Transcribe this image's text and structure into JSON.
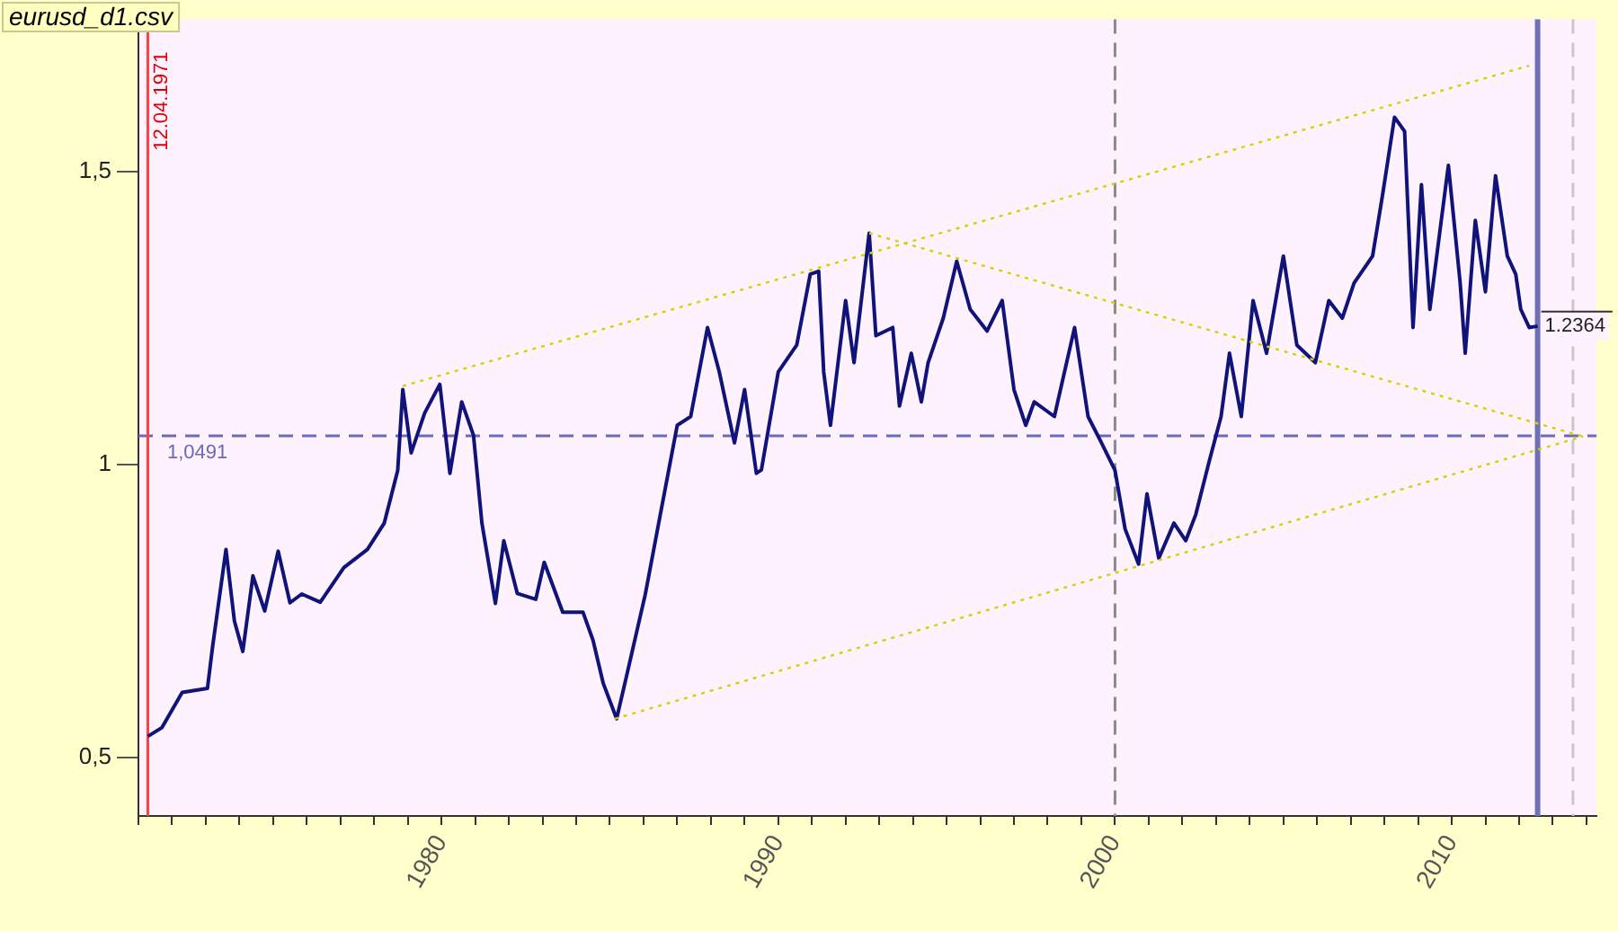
{
  "chart_data": {
    "type": "line",
    "title": "eurusd_d1.csv",
    "series": [
      {
        "color": "#10147a",
        "x": [
          1971.28,
          1971.7,
          1972.3,
          1973.05,
          1973.2,
          1973.6,
          1973.85,
          1974.1,
          1974.4,
          1974.75,
          1975.15,
          1975.5,
          1975.85,
          1976.4,
          1977.1,
          1977.8,
          1978.3,
          1978.7,
          1978.85,
          1979.1,
          1979.5,
          1979.95,
          1980.25,
          1980.6,
          1980.95,
          1981.2,
          1981.6,
          1981.85,
          1982.25,
          1982.8,
          1983.05,
          1983.6,
          1984.2,
          1984.5,
          1984.8,
          1985.2,
          1985.5,
          1986.05,
          1986.45,
          1987.0,
          1987.4,
          1987.9,
          1988.25,
          1988.7,
          1989.0,
          1989.35,
          1989.5,
          1990.0,
          1990.55,
          1990.95,
          1991.2,
          1991.35,
          1991.55,
          1992.0,
          1992.25,
          1992.7,
          1992.9,
          1993.4,
          1993.6,
          1993.95,
          1994.25,
          1994.45,
          1994.9,
          1995.3,
          1995.7,
          1996.2,
          1996.65,
          1997.0,
          1997.35,
          1997.6,
          1998.2,
          1998.8,
          1999.2,
          1999.6,
          2000.0,
          2000.3,
          2000.7,
          2000.95,
          2001.3,
          2001.75,
          2002.1,
          2002.4,
          2002.8,
          2003.15,
          2003.4,
          2003.75,
          2004.1,
          2004.5,
          2005.0,
          2005.4,
          2005.95,
          2006.35,
          2006.75,
          2007.1,
          2007.65,
          2007.95,
          2008.3,
          2008.6,
          2008.85,
          2009.1,
          2009.35,
          2009.9,
          2010.25,
          2010.4,
          2010.7,
          2011.0,
          2011.3,
          2011.65,
          2011.9,
          2012.05,
          2012.3,
          2012.55
        ],
        "values": [
          0.536,
          0.551,
          0.611,
          0.618,
          0.688,
          0.855,
          0.733,
          0.681,
          0.81,
          0.75,
          0.852,
          0.764,
          0.779,
          0.765,
          0.824,
          0.855,
          0.9,
          0.99,
          1.128,
          1.02,
          1.088,
          1.137,
          0.985,
          1.107,
          1.05,
          0.9,
          0.763,
          0.87,
          0.78,
          0.77,
          0.833,
          0.748,
          0.748,
          0.7,
          0.627,
          0.566,
          0.64,
          0.778,
          0.9,
          1.067,
          1.082,
          1.234,
          1.158,
          1.037,
          1.128,
          0.985,
          0.991,
          1.158,
          1.204,
          1.325,
          1.33,
          1.158,
          1.067,
          1.28,
          1.174,
          1.395,
          1.22,
          1.234,
          1.1,
          1.19,
          1.107,
          1.174,
          1.25,
          1.347,
          1.265,
          1.228,
          1.28,
          1.128,
          1.067,
          1.107,
          1.082,
          1.234,
          1.082,
          1.037,
          0.99,
          0.89,
          0.83,
          0.95,
          0.84,
          0.9,
          0.87,
          0.915,
          1.006,
          1.082,
          1.19,
          1.082,
          1.28,
          1.19,
          1.356,
          1.204,
          1.174,
          1.28,
          1.25,
          1.31,
          1.356,
          1.462,
          1.593,
          1.569,
          1.234,
          1.478,
          1.265,
          1.511,
          1.31,
          1.19,
          1.417,
          1.295,
          1.493,
          1.356,
          1.325,
          1.265,
          1.234,
          1.2364
        ]
      },
      {
        "type": "line",
        "line_style": "dotted",
        "color": "#d8d000",
        "x": [
          1978.85,
          2012.3
        ],
        "values": [
          1.134,
          1.681
        ]
      },
      {
        "type": "line",
        "line_style": "dotted",
        "color": "#d8d000",
        "x": [
          1985.15,
          2013.9
        ],
        "values": [
          0.566,
          1.048
        ]
      },
      {
        "type": "line",
        "line_style": "dotted",
        "color": "#d8d000",
        "x": [
          1992.7,
          2013.9
        ],
        "values": [
          1.395,
          1.048
        ]
      }
    ],
    "xlim": [
      1971,
      2014.3
    ],
    "xticks": [
      {
        "value": 1971,
        "label": null
      },
      {
        "value": 1972,
        "label": null
      },
      {
        "value": 1973,
        "label": null
      },
      {
        "value": 1974,
        "label": null
      },
      {
        "value": 1975,
        "label": null
      },
      {
        "value": 1976,
        "label": null
      },
      {
        "value": 1977,
        "label": null
      },
      {
        "value": 1978,
        "label": null
      },
      {
        "value": 1979,
        "label": null
      },
      1980,
      {
        "value": 1981,
        "label": null
      },
      {
        "value": 1982,
        "label": null
      },
      {
        "value": 1983,
        "label": null
      },
      {
        "value": 1984,
        "label": null
      },
      {
        "value": 1985,
        "label": null
      },
      {
        "value": 1986,
        "label": null
      },
      {
        "value": 1987,
        "label": null
      },
      {
        "value": 1988,
        "label": null
      },
      {
        "value": 1989,
        "label": null
      },
      1990,
      {
        "value": 1991,
        "label": null
      },
      {
        "value": 1992,
        "label": null
      },
      {
        "value": 1993,
        "label": null
      },
      {
        "value": 1994,
        "label": null
      },
      {
        "value": 1995,
        "label": null
      },
      {
        "value": 1996,
        "label": null
      },
      {
        "value": 1997,
        "label": null
      },
      {
        "value": 1998,
        "label": null
      },
      {
        "value": 1999,
        "label": null
      },
      2000,
      {
        "value": 2001,
        "label": null
      },
      {
        "value": 2002,
        "label": null
      },
      {
        "value": 2003,
        "label": null
      },
      {
        "value": 2004,
        "label": null
      },
      {
        "value": 2005,
        "label": null
      },
      {
        "value": 2006,
        "label": null
      },
      {
        "value": 2007,
        "label": null
      },
      {
        "value": 2008,
        "label": null
      },
      {
        "value": 2009,
        "label": null
      },
      2010,
      {
        "value": 2011,
        "label": null
      },
      {
        "value": 2012,
        "label": null
      },
      {
        "value": 2013,
        "label": null
      },
      {
        "value": 2014,
        "label": null
      }
    ],
    "ylim": [
      0.4,
      1.76
    ],
    "yticks": [
      {
        "value": 0.5,
        "label": "0,5"
      },
      1,
      {
        "value": 1.5,
        "label": "1,5"
      }
    ],
    "ref_lines": [
      {
        "axis": "y",
        "value": 1.0491,
        "label": "1,0491",
        "color": "#6a6ab8",
        "line_style": "dashed"
      },
      {
        "axis": "x",
        "value": 1971.28,
        "label": "12.04.1971",
        "color": "#ff4040",
        "line_style": "solid"
      },
      {
        "axis": "x",
        "value": 2000,
        "label": null,
        "color": "#8a8a8a",
        "line_style": "dashed"
      },
      {
        "axis": "x",
        "value": 2012.55,
        "label": null,
        "color": "#7070b8",
        "line_style": "solid"
      },
      {
        "axis": "x",
        "value": 2013.6,
        "label": null,
        "color": "#c8c8c8",
        "line_style": "dashed"
      }
    ],
    "annotations": [
      {
        "text": "1.2364",
        "x": 2012.55,
        "y": 1.2364
      }
    ],
    "grid": false,
    "legend": false,
    "marker": "none"
  }
}
